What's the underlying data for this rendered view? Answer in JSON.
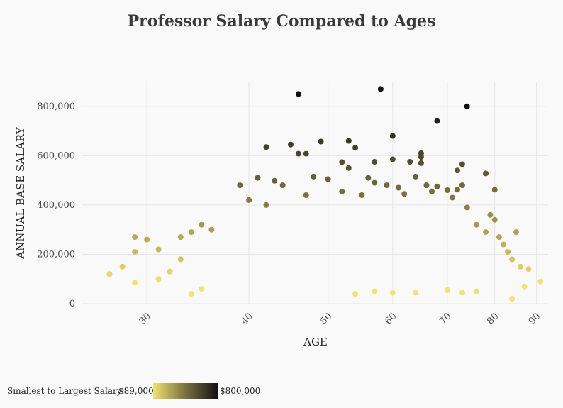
{
  "chart_data": {
    "type": "scatter",
    "title": "Professor Salary Compared to Ages",
    "xlabel": "AGE",
    "ylabel": "ANNUAL BASE SALARY",
    "xscale": "log",
    "xlim": [
      25,
      93
    ],
    "ylim": [
      0,
      900000
    ],
    "x_ticks": [
      30,
      40,
      50,
      60,
      70,
      80,
      90
    ],
    "y_ticks": [
      0,
      200000,
      400000,
      600000,
      800000
    ],
    "y_tick_labels": [
      "0",
      "200,000",
      "400,000",
      "600,000",
      "800,000"
    ],
    "grid": true,
    "color_scale": {
      "label": "Smallest to Largest Salary:",
      "min_label": "$89,000",
      "max_label": "$800,000",
      "min": 89000,
      "max": 800000,
      "colors": [
        "#f0e273",
        "#7a7140",
        "#111111"
      ]
    },
    "points": [
      [
        46,
        850000
      ],
      [
        58,
        870000
      ],
      [
        68,
        740000
      ],
      [
        74,
        800000
      ],
      [
        42,
        635000
      ],
      [
        45,
        645000
      ],
      [
        46,
        608000
      ],
      [
        47,
        608000
      ],
      [
        49,
        657000
      ],
      [
        53,
        660000
      ],
      [
        54,
        632000
      ],
      [
        52,
        574000
      ],
      [
        53,
        550000
      ],
      [
        57,
        575000
      ],
      [
        60,
        680000
      ],
      [
        60,
        585000
      ],
      [
        63,
        575000
      ],
      [
        65,
        610000
      ],
      [
        65,
        595000
      ],
      [
        65,
        570000
      ],
      [
        72,
        540000
      ],
      [
        73,
        565000
      ],
      [
        78,
        528000
      ],
      [
        80,
        462000
      ],
      [
        72,
        462000
      ],
      [
        73,
        480000
      ],
      [
        39,
        480000
      ],
      [
        41,
        510000
      ],
      [
        43,
        498000
      ],
      [
        44,
        480000
      ],
      [
        48,
        515000
      ],
      [
        50,
        505000
      ],
      [
        56,
        510000
      ],
      [
        57,
        490000
      ],
      [
        59,
        480000
      ],
      [
        61,
        470000
      ],
      [
        64,
        515000
      ],
      [
        66,
        480000
      ],
      [
        68,
        475000
      ],
      [
        70,
        460000
      ],
      [
        40,
        420000
      ],
      [
        42,
        400000
      ],
      [
        47,
        440000
      ],
      [
        52,
        455000
      ],
      [
        55,
        440000
      ],
      [
        62,
        445000
      ],
      [
        67,
        455000
      ],
      [
        71,
        430000
      ],
      [
        74,
        390000
      ],
      [
        79,
        360000
      ],
      [
        80,
        340000
      ],
      [
        76,
        320000
      ],
      [
        78,
        290000
      ],
      [
        81,
        270000
      ],
      [
        82,
        240000
      ],
      [
        83,
        210000
      ],
      [
        85,
        290000
      ],
      [
        84,
        180000
      ],
      [
        86,
        150000
      ],
      [
        88,
        140000
      ],
      [
        91,
        90000
      ],
      [
        87,
        70000
      ],
      [
        84,
        20000
      ],
      [
        27,
        120000
      ],
      [
        28,
        150000
      ],
      [
        29,
        270000
      ],
      [
        29,
        210000
      ],
      [
        30,
        260000
      ],
      [
        29,
        85000
      ],
      [
        31,
        220000
      ],
      [
        33,
        270000
      ],
      [
        34,
        290000
      ],
      [
        35,
        320000
      ],
      [
        34,
        40000
      ],
      [
        31,
        100000
      ],
      [
        32,
        130000
      ],
      [
        33,
        180000
      ],
      [
        35,
        60000
      ],
      [
        36,
        300000
      ],
      [
        54,
        40000
      ],
      [
        57,
        50000
      ],
      [
        60,
        45000
      ],
      [
        64,
        45000
      ],
      [
        70,
        55000
      ],
      [
        73,
        45000
      ],
      [
        76,
        50000
      ]
    ]
  }
}
